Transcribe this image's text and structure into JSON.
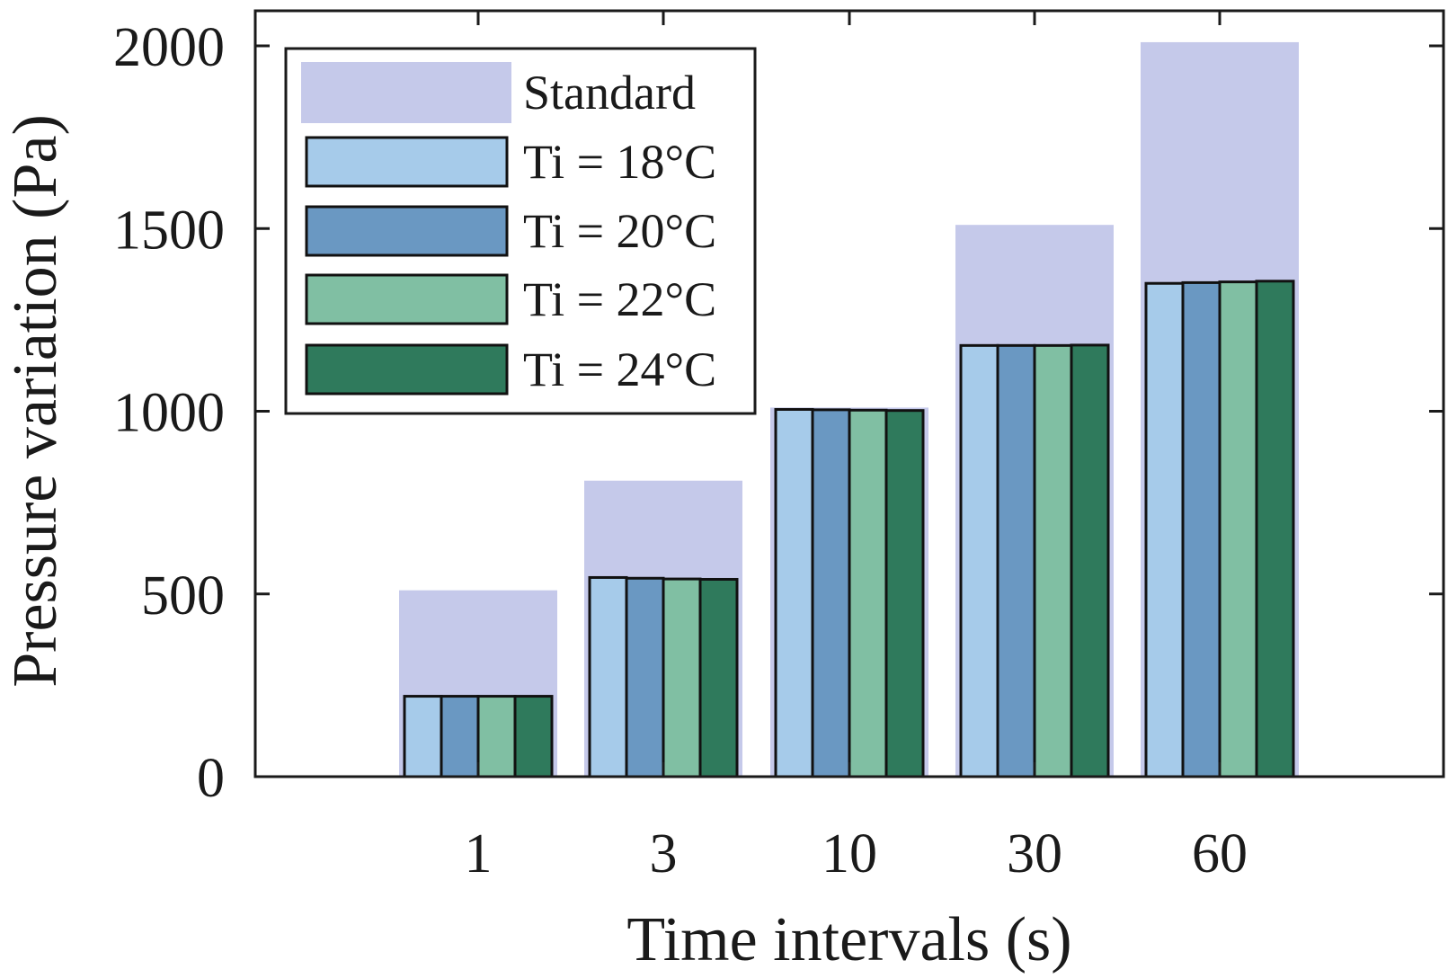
{
  "chart_data": {
    "type": "bar",
    "title": "",
    "xlabel": "Time intervals (s)",
    "ylabel": "Pressure variation (Pa)",
    "categories": [
      "1",
      "3",
      "10",
      "30",
      "60"
    ],
    "ylim": [
      0,
      2000
    ],
    "yticks": [
      "0",
      "500",
      "1000",
      "1500",
      "2000"
    ],
    "grid": false,
    "legend_position": "top-left",
    "background_series": {
      "name": "Standard",
      "values": [
        510,
        810,
        1010,
        1510,
        2010
      ],
      "color": "#c5c9ea"
    },
    "series": [
      {
        "name": "Ti = 18°C",
        "values": [
          220,
          545,
          1005,
          1180,
          1350
        ],
        "color": "#a6cbea"
      },
      {
        "name": "Ti = 20°C",
        "values": [
          220,
          543,
          1004,
          1180,
          1352
        ],
        "color": "#6a98c2"
      },
      {
        "name": "Ti = 22°C",
        "values": [
          220,
          541,
          1003,
          1180,
          1354
        ],
        "color": "#80bfa3"
      },
      {
        "name": "Ti = 24°C",
        "values": [
          220,
          540,
          1002,
          1181,
          1356
        ],
        "color": "#2f7a5c"
      }
    ]
  }
}
